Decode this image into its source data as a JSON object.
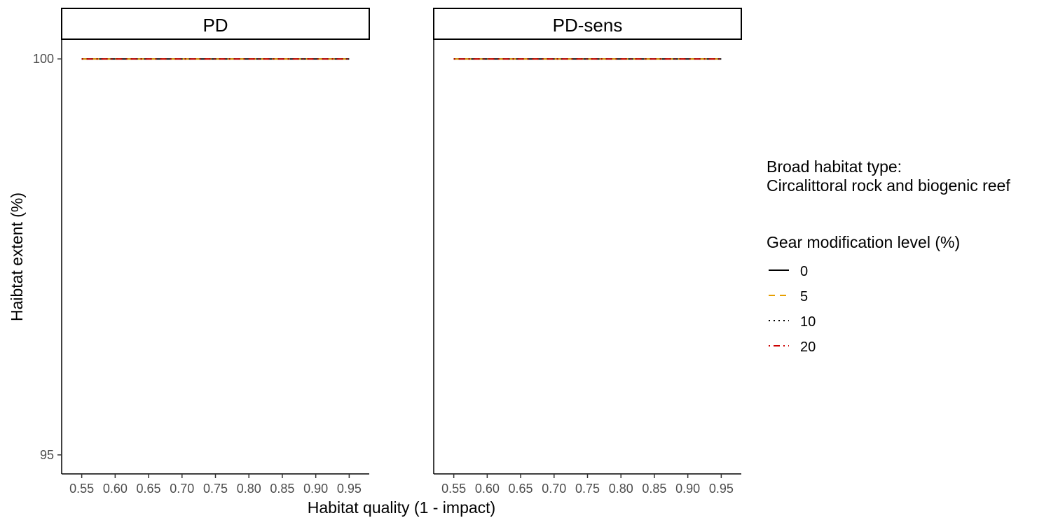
{
  "chart_data": {
    "type": "line",
    "facets": [
      {
        "strip_label": "PD",
        "series": [
          {
            "name": "0",
            "x": [
              0.55,
              0.6,
              0.65,
              0.7,
              0.75,
              0.8,
              0.85,
              0.9,
              0.95
            ],
            "y": [
              100,
              100,
              100,
              100,
              100,
              100,
              100,
              100,
              100
            ]
          },
          {
            "name": "5",
            "x": [
              0.55,
              0.6,
              0.65,
              0.7,
              0.75,
              0.8,
              0.85,
              0.9,
              0.95
            ],
            "y": [
              100,
              100,
              100,
              100,
              100,
              100,
              100,
              100,
              100
            ]
          },
          {
            "name": "10",
            "x": [
              0.55,
              0.6,
              0.65,
              0.7,
              0.75,
              0.8,
              0.85,
              0.9,
              0.95
            ],
            "y": [
              100,
              100,
              100,
              100,
              100,
              100,
              100,
              100,
              100
            ]
          },
          {
            "name": "20",
            "x": [
              0.55,
              0.6,
              0.65,
              0.7,
              0.75,
              0.8,
              0.85,
              0.9,
              0.95
            ],
            "y": [
              100,
              100,
              100,
              100,
              100,
              100,
              100,
              100,
              100
            ]
          }
        ]
      },
      {
        "strip_label": "PD-sens",
        "series": [
          {
            "name": "0",
            "x": [
              0.55,
              0.6,
              0.65,
              0.7,
              0.75,
              0.8,
              0.85,
              0.9,
              0.95
            ],
            "y": [
              100,
              100,
              100,
              100,
              100,
              100,
              100,
              100,
              100
            ]
          },
          {
            "name": "5",
            "x": [
              0.55,
              0.6,
              0.65,
              0.7,
              0.75,
              0.8,
              0.85,
              0.9,
              0.95
            ],
            "y": [
              100,
              100,
              100,
              100,
              100,
              100,
              100,
              100,
              100
            ]
          },
          {
            "name": "10",
            "x": [
              0.55,
              0.6,
              0.65,
              0.7,
              0.75,
              0.8,
              0.85,
              0.9,
              0.95
            ],
            "y": [
              100,
              100,
              100,
              100,
              100,
              100,
              100,
              100,
              100
            ]
          },
          {
            "name": "20",
            "x": [
              0.55,
              0.6,
              0.65,
              0.7,
              0.75,
              0.8,
              0.85,
              0.9,
              0.95
            ],
            "y": [
              100,
              100,
              100,
              100,
              100,
              100,
              100,
              100,
              100
            ]
          }
        ]
      }
    ],
    "xlabel": "Habitat quality (1 - impact)",
    "ylabel": "Haibtat extent (%)",
    "xticks": [
      "0.55",
      "0.60",
      "0.65",
      "0.70",
      "0.75",
      "0.80",
      "0.85",
      "0.90",
      "0.95"
    ],
    "xtick_values": [
      0.55,
      0.6,
      0.65,
      0.7,
      0.75,
      0.8,
      0.85,
      0.9,
      0.95
    ],
    "yticks": [
      "95",
      "100"
    ],
    "ytick_values": [
      95,
      100
    ],
    "xlim": [
      0.52,
      0.98
    ],
    "ylim": [
      94.76,
      100.24
    ],
    "grid": false,
    "legend_position": "right",
    "legend": {
      "title1": "Broad habitat type:",
      "title2": "Circalittoral rock and biogenic reef",
      "title3": "Gear modification level (%)",
      "entries": [
        {
          "label": "0",
          "color": "#000000",
          "dash": "solid"
        },
        {
          "label": "5",
          "color": "#E69F00",
          "dash": "dashed"
        },
        {
          "label": "10",
          "color": "#000000",
          "dash": "dotted"
        },
        {
          "label": "20",
          "color": "#CC0000",
          "dash": "dotdash"
        }
      ]
    }
  }
}
